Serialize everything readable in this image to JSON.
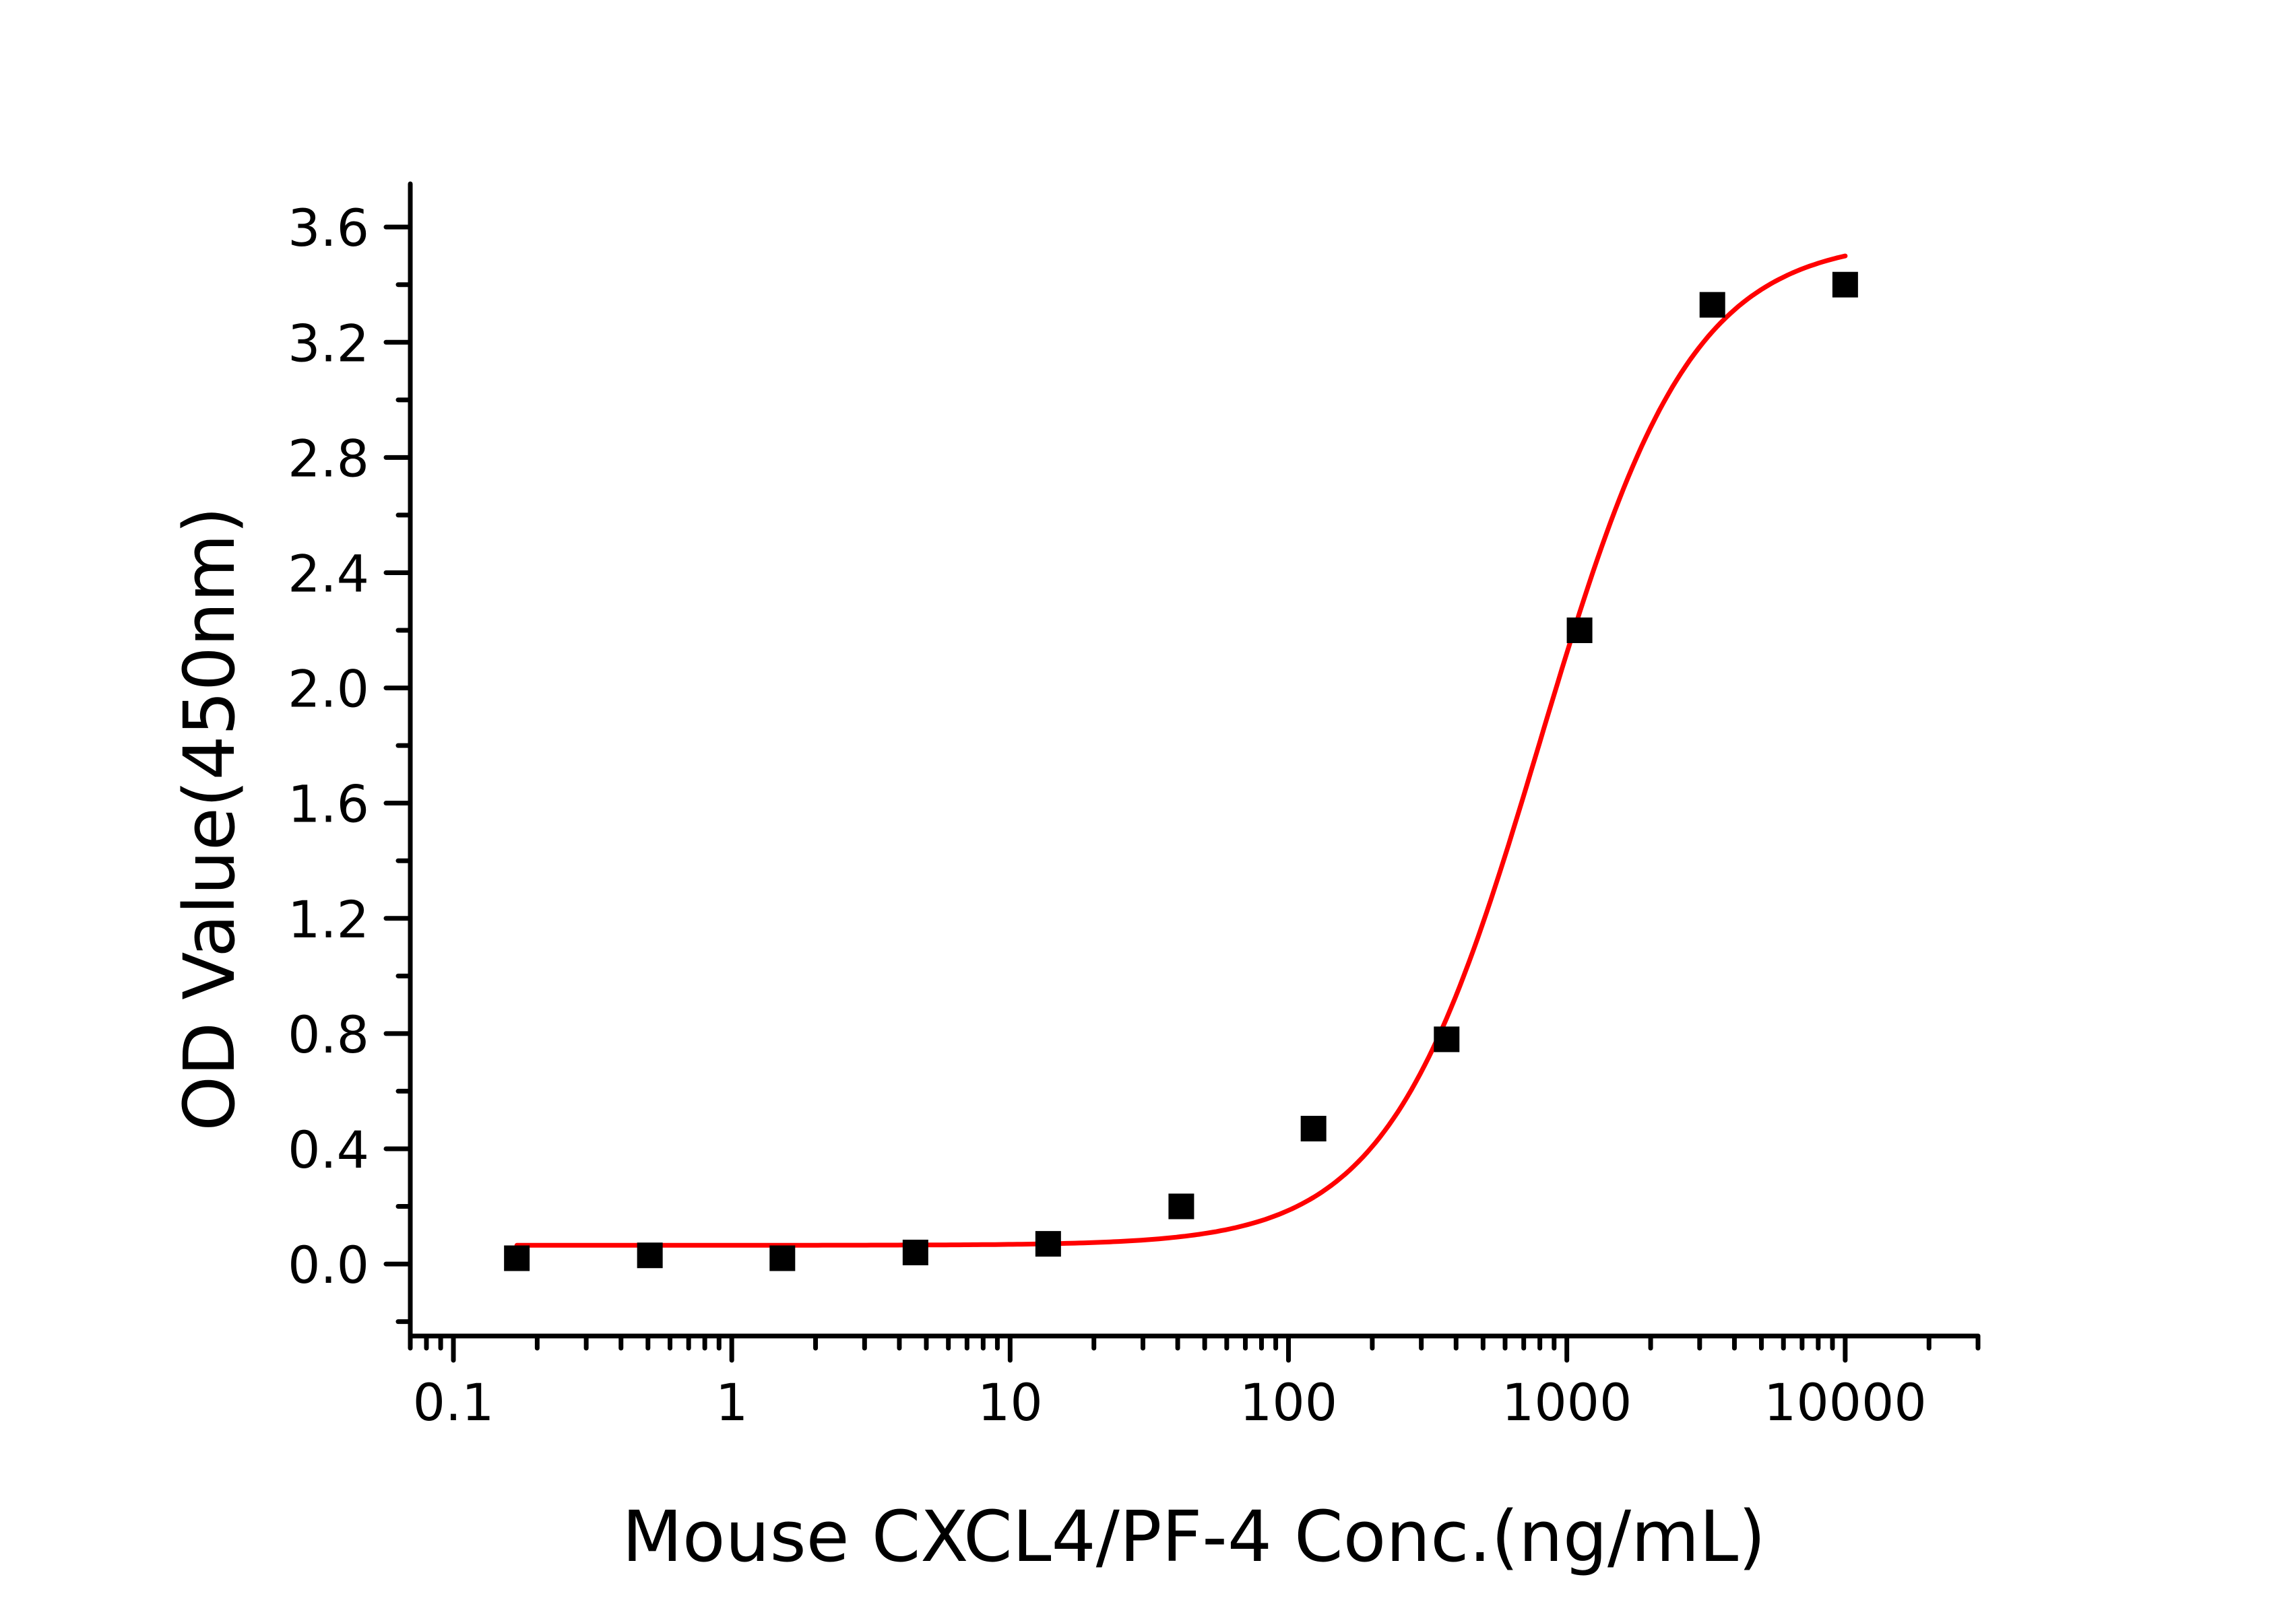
{
  "chart_data": {
    "type": "scatter",
    "title": "",
    "xlabel": "Mouse CXCL4/PF-4 Conc.(ng/mL)",
    "ylabel": "OD Value(450nm)",
    "xscale": "log",
    "xlim": [
      0.07,
      30000
    ],
    "ylim": [
      -0.25,
      3.75
    ],
    "grid": false,
    "legend": "none",
    "x_ticks": [
      {
        "value": 0.1,
        "label": "0.1"
      },
      {
        "value": 1,
        "label": "1"
      },
      {
        "value": 10,
        "label": "10"
      },
      {
        "value": 100,
        "label": "100"
      },
      {
        "value": 1000,
        "label": "1000"
      },
      {
        "value": 10000,
        "label": "10000"
      }
    ],
    "y_ticks": [
      {
        "value": 0.0,
        "label": "0.0"
      },
      {
        "value": 0.4,
        "label": "0.4"
      },
      {
        "value": 0.8,
        "label": "0.8"
      },
      {
        "value": 1.2,
        "label": "1.2"
      },
      {
        "value": 1.6,
        "label": "1.6"
      },
      {
        "value": 2.0,
        "label": "2.0"
      },
      {
        "value": 2.4,
        "label": "2.4"
      },
      {
        "value": 2.8,
        "label": "2.8"
      },
      {
        "value": 3.2,
        "label": "3.2"
      },
      {
        "value": 3.6,
        "label": "3.6"
      }
    ],
    "y_minor_ticks": [
      -0.2,
      0.2,
      0.6,
      1.0,
      1.4,
      1.8,
      2.2,
      2.6,
      3.0,
      3.4
    ],
    "series": [
      {
        "name": "data",
        "kind": "scatter",
        "marker": "square",
        "color": "#000000",
        "x": [
          0.169,
          0.508,
          1.52,
          4.57,
          13.7,
          41.2,
          123,
          370,
          1111,
          3333,
          10000
        ],
        "y": [
          0.02,
          0.03,
          0.02,
          0.04,
          0.07,
          0.2,
          0.47,
          0.78,
          2.2,
          3.33,
          3.4
        ]
      },
      {
        "name": "fit",
        "kind": "line",
        "model": "4PL",
        "color": "#ff0000",
        "params": {
          "bottom": 0.065,
          "top": 3.56,
          "ec50": 800,
          "hill": 1.6
        },
        "x_range": [
          0.169,
          10000
        ]
      }
    ]
  }
}
